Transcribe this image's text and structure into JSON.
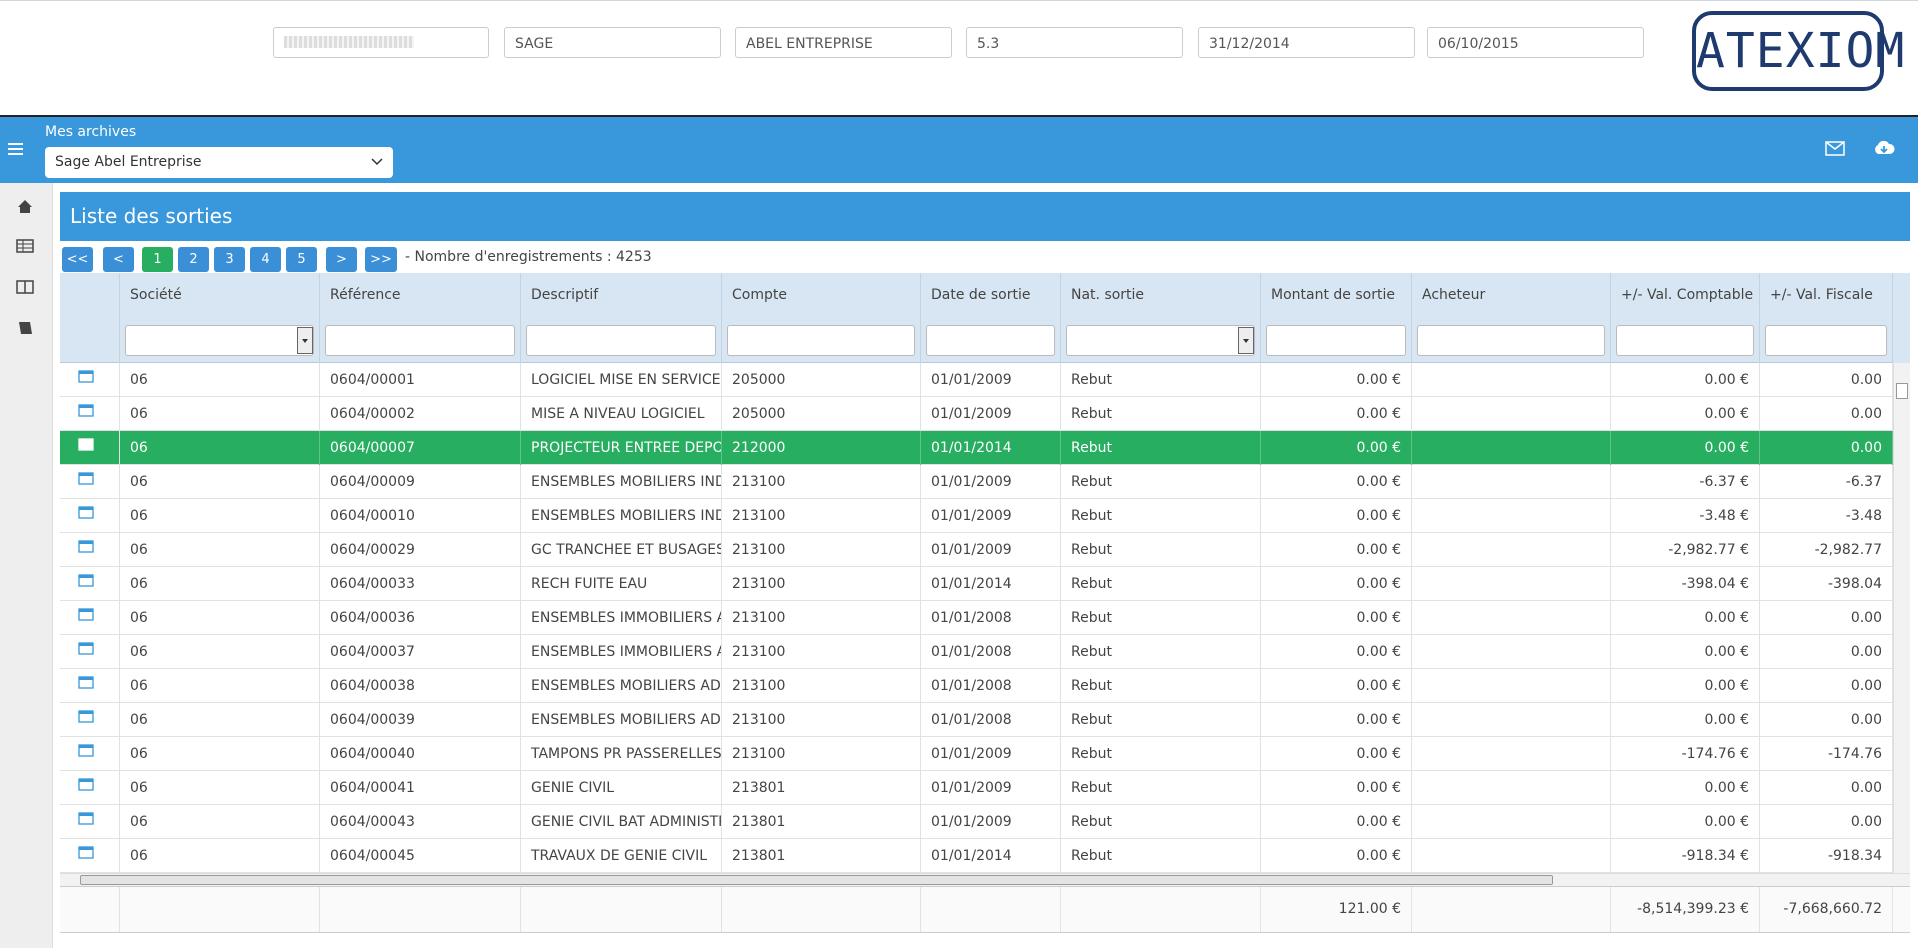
{
  "header": {
    "fields": [
      "SAGE",
      "ABEL ENTREPRISE",
      "5.3",
      "31/12/2014",
      "06/10/2015"
    ],
    "logo": "ATEXIOM"
  },
  "nav": {
    "label": "Mes archives",
    "archive": "Sage Abel Entreprise"
  },
  "panel": {
    "title": "Liste des sorties",
    "pages": [
      "<<",
      "<",
      "1",
      "2",
      "3",
      "4",
      "5",
      ">",
      ">>"
    ],
    "active_page": 2,
    "record_count": "- Nombre d'enregistrements : 4253"
  },
  "table": {
    "columns": [
      "Société",
      "Référence",
      "Descriptif",
      "Compte",
      "Date de sortie",
      "Nat. sortie",
      "Montant de sortie",
      "Acheteur",
      "+/- Val. Comptable",
      "+/- Val. Fiscale"
    ],
    "selected_row": 2,
    "rows": [
      [
        "06",
        "0604/00001",
        "LOGICIEL MISE EN SERVICE",
        "205000",
        "01/01/2009",
        "Rebut",
        "0.00 €",
        null,
        "0.00 €",
        "0.00"
      ],
      [
        "06",
        "0604/00002",
        "MISE A NIVEAU LOGICIEL",
        "205000",
        "01/01/2009",
        "Rebut",
        "0.00 €",
        null,
        "0.00 €",
        "0.00"
      ],
      [
        "06",
        "0604/00007",
        "PROJECTEUR ENTREE DEPOT",
        "212000",
        "01/01/2014",
        "Rebut",
        "0.00 €",
        null,
        "0.00 €",
        "0.00"
      ],
      [
        "06",
        "0604/00009",
        "ENSEMBLES MOBILIERS INDU",
        "213100",
        "01/01/2009",
        "Rebut",
        "0.00 €",
        null,
        "-6.37 €",
        "-6.37"
      ],
      [
        "06",
        "0604/00010",
        "ENSEMBLES MOBILIERS INDU",
        "213100",
        "01/01/2009",
        "Rebut",
        "0.00 €",
        null,
        "-3.48 €",
        "-3.48"
      ],
      [
        "06",
        "0604/00029",
        "GC TRANCHEE ET BUSAGES",
        "213100",
        "01/01/2009",
        "Rebut",
        "0.00 €",
        null,
        "-2,982.77 €",
        "-2,982.77"
      ],
      [
        "06",
        "0604/00033",
        "RECH FUITE EAU",
        "213100",
        "01/01/2014",
        "Rebut",
        "0.00 €",
        null,
        "-398.04 €",
        "-398.04"
      ],
      [
        "06",
        "0604/00036",
        "ENSEMBLES IMMOBILIERS AD",
        "213100",
        "01/01/2008",
        "Rebut",
        "0.00 €",
        null,
        "0.00 €",
        "0.00"
      ],
      [
        "06",
        "0604/00037",
        "ENSEMBLES IMMOBILIERS AD",
        "213100",
        "01/01/2008",
        "Rebut",
        "0.00 €",
        null,
        "0.00 €",
        "0.00"
      ],
      [
        "06",
        "0604/00038",
        "ENSEMBLES MOBILIERS ADM",
        "213100",
        "01/01/2008",
        "Rebut",
        "0.00 €",
        null,
        "0.00 €",
        "0.00"
      ],
      [
        "06",
        "0604/00039",
        "ENSEMBLES MOBILIERS ADM",
        "213100",
        "01/01/2008",
        "Rebut",
        "0.00 €",
        null,
        "0.00 €",
        "0.00"
      ],
      [
        "06",
        "0604/00040",
        "TAMPONS PR PASSERELLES",
        "213100",
        "01/01/2009",
        "Rebut",
        "0.00 €",
        null,
        "-174.76 €",
        "-174.76"
      ],
      [
        "06",
        "0604/00041",
        "GENIE CIVIL",
        "213801",
        "01/01/2009",
        "Rebut",
        "0.00 €",
        null,
        "0.00 €",
        "0.00"
      ],
      [
        "06",
        "0604/00043",
        "GENIE CIVIL BAT ADMINISTRA",
        "213801",
        "01/01/2009",
        "Rebut",
        "0.00 €",
        null,
        "0.00 €",
        "0.00"
      ],
      [
        "06",
        "0604/00045",
        "TRAVAUX DE GENIE CIVIL",
        "213801",
        "01/01/2014",
        "Rebut",
        "0.00 €",
        null,
        "-918.34 €",
        "-918.34"
      ]
    ],
    "totals": [
      null,
      null,
      null,
      null,
      null,
      null,
      "121.00 €",
      null,
      "-8,514,399.23 €",
      "-7,668,660.72"
    ],
    "dropdown_filters": [
      0,
      5
    ],
    "right_aligned": [
      6,
      8,
      9
    ]
  }
}
